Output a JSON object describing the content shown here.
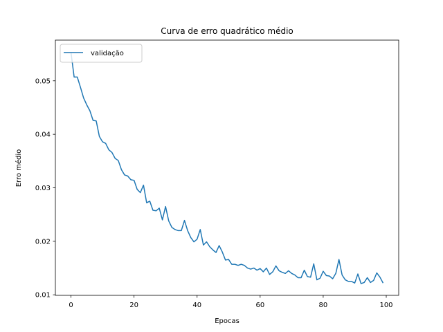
{
  "chart_data": {
    "type": "line",
    "title": "Curva de erro quadrático médio",
    "xlabel": "Epocas",
    "ylabel": "Erro médio",
    "xlim": [
      -4.95,
      103.95
    ],
    "ylim": [
      0.0099,
      0.0576
    ],
    "xticks": [
      0,
      20,
      40,
      60,
      80,
      100
    ],
    "xtick_labels": [
      "0",
      "20",
      "40",
      "60",
      "80",
      "100"
    ],
    "yticks": [
      0.01,
      0.02,
      0.03,
      0.04,
      0.05
    ],
    "ytick_labels": [
      "0.01",
      "0.02",
      "0.03",
      "0.04",
      "0.05"
    ],
    "grid": false,
    "legend_position": "upper-left",
    "line_color": "#1f77b4",
    "series": [
      {
        "name": "validação",
        "x": [
          0,
          1,
          2,
          3,
          4,
          5,
          6,
          7,
          8,
          9,
          10,
          11,
          12,
          13,
          14,
          15,
          16,
          17,
          18,
          19,
          20,
          21,
          22,
          23,
          24,
          25,
          26,
          27,
          28,
          29,
          30,
          31,
          32,
          33,
          34,
          35,
          36,
          37,
          38,
          39,
          40,
          41,
          42,
          43,
          44,
          45,
          46,
          47,
          48,
          49,
          50,
          51,
          52,
          53,
          54,
          55,
          56,
          57,
          58,
          59,
          60,
          61,
          62,
          63,
          64,
          65,
          66,
          67,
          68,
          69,
          70,
          71,
          72,
          73,
          74,
          75,
          76,
          77,
          78,
          79,
          80,
          81,
          82,
          83,
          84,
          85,
          86,
          87,
          88,
          89,
          90,
          91,
          92,
          93,
          94,
          95,
          96,
          97,
          98,
          99
        ],
        "y": [
          0.0553,
          0.0507,
          0.0507,
          0.0488,
          0.0468,
          0.0455,
          0.0444,
          0.0426,
          0.0425,
          0.0396,
          0.0386,
          0.0383,
          0.0371,
          0.0366,
          0.0355,
          0.0351,
          0.0334,
          0.0324,
          0.0322,
          0.0315,
          0.0314,
          0.0297,
          0.0291,
          0.0305,
          0.0272,
          0.0275,
          0.0258,
          0.0257,
          0.0262,
          0.024,
          0.0265,
          0.0238,
          0.0226,
          0.0222,
          0.022,
          0.022,
          0.0239,
          0.022,
          0.0207,
          0.0199,
          0.0204,
          0.0222,
          0.0193,
          0.0199,
          0.019,
          0.0184,
          0.0179,
          0.0192,
          0.018,
          0.0165,
          0.0166,
          0.0157,
          0.0157,
          0.0155,
          0.0157,
          0.0155,
          0.015,
          0.0148,
          0.015,
          0.0146,
          0.0149,
          0.0143,
          0.015,
          0.0138,
          0.0143,
          0.0154,
          0.0145,
          0.0142,
          0.014,
          0.0145,
          0.014,
          0.0137,
          0.0132,
          0.0132,
          0.0146,
          0.0134,
          0.0133,
          0.0158,
          0.0128,
          0.0131,
          0.0144,
          0.0136,
          0.0135,
          0.013,
          0.014,
          0.0166,
          0.0137,
          0.0128,
          0.0125,
          0.0125,
          0.0122,
          0.0139,
          0.0121,
          0.0123,
          0.0132,
          0.0123,
          0.0127,
          0.0141,
          0.0133,
          0.0122
        ]
      }
    ]
  }
}
